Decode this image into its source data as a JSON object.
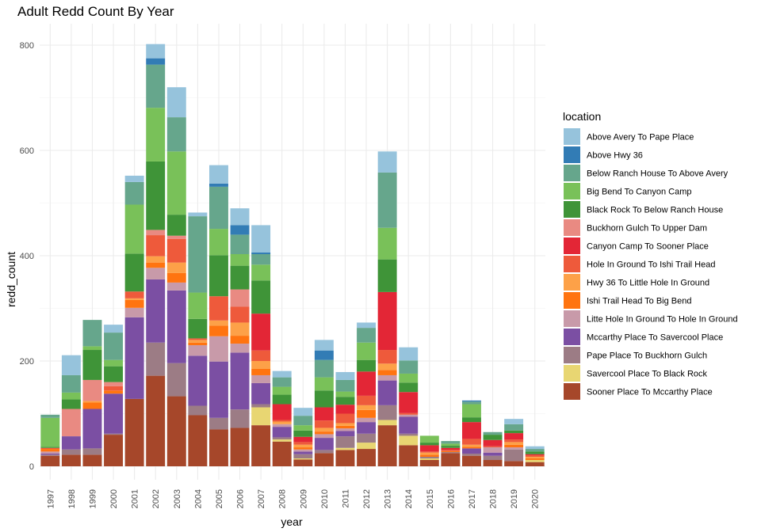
{
  "chart_data": {
    "type": "bar",
    "stacked": true,
    "title": "Adult Redd Count By Year",
    "xlabel": "year",
    "ylabel": "redd_count",
    "ylim": [
      0,
      820
    ],
    "yticks": [
      0,
      200,
      400,
      600,
      800
    ],
    "grid": true,
    "legend_position": "right",
    "legend_title": "location",
    "categories": [
      "1997",
      "1998",
      "1999",
      "2000",
      "2001",
      "2002",
      "2003",
      "2004",
      "2005",
      "2006",
      "2007",
      "2008",
      "2009",
      "2010",
      "2011",
      "2012",
      "2013",
      "2014",
      "2015",
      "2016",
      "2017",
      "2018",
      "2019",
      "2020"
    ],
    "series": [
      {
        "name": "Sooner Place To Mccarthy Place",
        "color": "#A6472A",
        "values": [
          20,
          22,
          22,
          60,
          128,
          172,
          133,
          97,
          70,
          73,
          78,
          47,
          13,
          25,
          31,
          33,
          78,
          40,
          12,
          25,
          20,
          12,
          10,
          8
        ]
      },
      {
        "name": "Savercool Place  To Black Rock",
        "color": "#E8D672",
        "values": [
          0,
          0,
          0,
          0,
          0,
          0,
          0,
          0,
          0,
          0,
          34,
          4,
          2,
          0,
          4,
          12,
          10,
          18,
          3,
          0,
          0,
          0,
          0,
          4
        ]
      },
      {
        "name": "Pape Place To Buckhorn Gulch",
        "color": "#9C7C85",
        "values": [
          2,
          10,
          12,
          2,
          0,
          63,
          63,
          18,
          22,
          35,
          6,
          4,
          8,
          6,
          22,
          17,
          28,
          4,
          3,
          2,
          4,
          8,
          22,
          0
        ]
      },
      {
        "name": "Mccarthy Place To Savercool Place",
        "color": "#7B4FA3",
        "values": [
          2,
          25,
          75,
          76,
          155,
          120,
          138,
          95,
          107,
          108,
          40,
          20,
          5,
          23,
          10,
          22,
          47,
          32,
          0,
          0,
          10,
          6,
          0,
          0
        ]
      },
      {
        "name": "Litte Hole In Ground To Hole In Ground",
        "color": "#C89AA9",
        "values": [
          4,
          0,
          0,
          0,
          18,
          22,
          15,
          20,
          48,
          17,
          15,
          5,
          4,
          7,
          5,
          8,
          10,
          4,
          0,
          0,
          0,
          10,
          4,
          0
        ]
      },
      {
        "name": "Ishi Trail Head To Big Bend",
        "color": "#FF7410",
        "values": [
          5,
          0,
          12,
          6,
          15,
          10,
          18,
          5,
          20,
          15,
          12,
          0,
          4,
          5,
          5,
          15,
          10,
          0,
          4,
          2,
          3,
          0,
          5,
          3
        ]
      },
      {
        "name": "Hwy 36 To Little Hole In Ground",
        "color": "#FDA148",
        "values": [
          0,
          0,
          3,
          0,
          3,
          12,
          20,
          5,
          10,
          25,
          15,
          5,
          5,
          7,
          5,
          9,
          12,
          0,
          4,
          0,
          4,
          0,
          5,
          3
        ]
      },
      {
        "name": "Hole In Ground To Ishi Trail Head",
        "color": "#EE5A3B",
        "values": [
          2,
          0,
          0,
          8,
          13,
          40,
          45,
          3,
          46,
          30,
          20,
          3,
          5,
          14,
          18,
          18,
          26,
          3,
          2,
          2,
          11,
          2,
          5,
          3
        ]
      },
      {
        "name": "Canyon Camp To Sooner Place",
        "color": "#E32636",
        "values": [
          0,
          0,
          0,
          0,
          0,
          0,
          0,
          0,
          0,
          0,
          70,
          30,
          10,
          25,
          17,
          46,
          110,
          40,
          12,
          4,
          32,
          12,
          12,
          2
        ]
      },
      {
        "name": "Buckhorn Gulch To Upper Dam",
        "color": "#E98A82",
        "values": [
          0,
          52,
          40,
          8,
          0,
          10,
          6,
          0,
          0,
          33,
          0,
          0,
          0,
          0,
          0,
          0,
          0,
          0,
          0,
          0,
          0,
          0,
          0,
          0
        ]
      },
      {
        "name": "Black Rock To Below Ranch House",
        "color": "#3F9438",
        "values": [
          2,
          18,
          57,
          30,
          72,
          130,
          40,
          37,
          78,
          45,
          63,
          18,
          12,
          32,
          15,
          22,
          62,
          18,
          5,
          4,
          9,
          10,
          5,
          5
        ]
      },
      {
        "name": "Big Bend To Canyon Camp",
        "color": "#79C159",
        "values": [
          55,
          13,
          7,
          12,
          93,
          102,
          120,
          50,
          50,
          22,
          30,
          15,
          10,
          25,
          10,
          33,
          60,
          17,
          13,
          4,
          25,
          0,
          0,
          0
        ]
      },
      {
        "name": "Below Ranch House To Above Avery",
        "color": "#66A68C",
        "values": [
          6,
          33,
          50,
          52,
          43,
          82,
          65,
          145,
          80,
          37,
          20,
          18,
          18,
          33,
          22,
          28,
          105,
          25,
          0,
          5,
          5,
          5,
          12,
          5
        ]
      },
      {
        "name": "Above Hwy 36",
        "color": "#327CB5",
        "values": [
          0,
          0,
          0,
          0,
          0,
          12,
          0,
          0,
          6,
          18,
          3,
          0,
          0,
          18,
          0,
          0,
          0,
          0,
          0,
          0,
          2,
          0,
          0,
          0
        ]
      },
      {
        "name": "Above Avery To Pape Place",
        "color": "#96C3DC",
        "values": [
          0,
          38,
          0,
          15,
          12,
          27,
          57,
          7,
          35,
          32,
          52,
          12,
          15,
          20,
          15,
          10,
          40,
          25,
          0,
          0,
          0,
          0,
          10,
          5
        ]
      }
    ]
  }
}
